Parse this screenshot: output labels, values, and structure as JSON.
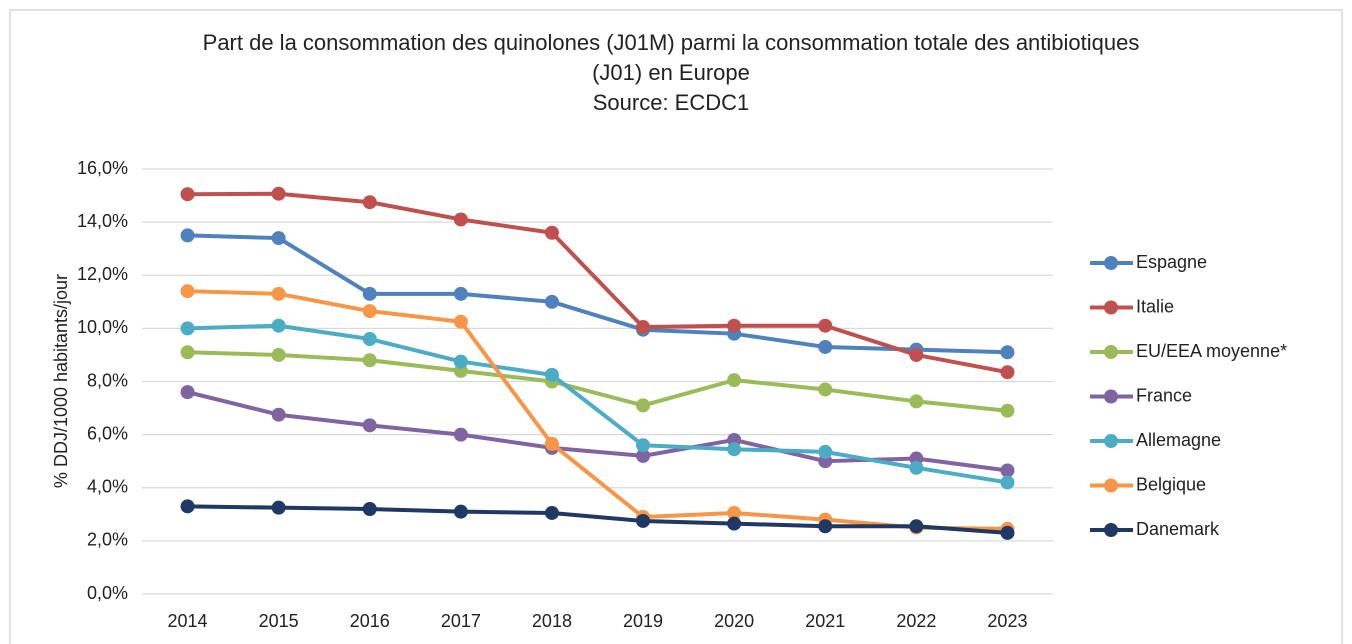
{
  "chart_data": {
    "type": "line",
    "title": "Part de la consommation des quinolones (J01M)  parmi la consommation totale des antibiotiques (J01) en Europe",
    "subtitle": "Source: ECDC1",
    "y_label": "% DDJ/1000 habitants/jour",
    "categories": [
      "2014",
      "2015",
      "2016",
      "2017",
      "2018",
      "2019",
      "2020",
      "2021",
      "2022",
      "2023"
    ],
    "series": [
      {
        "name": "Espagne",
        "color": "#4f81bd",
        "values": [
          13.5,
          13.4,
          11.3,
          11.3,
          11.0,
          9.95,
          9.8,
          9.3,
          9.2,
          9.1
        ]
      },
      {
        "name": "Italie",
        "color": "#c0504d",
        "values": [
          15.05,
          15.07,
          14.75,
          14.1,
          13.6,
          10.05,
          10.1,
          10.1,
          9.0,
          8.35
        ]
      },
      {
        "name": "EU/EEA moyenne*",
        "color": "#9bbb59",
        "values": [
          9.1,
          9.0,
          8.8,
          8.4,
          8.0,
          7.1,
          8.05,
          7.7,
          7.25,
          6.9
        ]
      },
      {
        "name": "France",
        "color": "#8064a2",
        "values": [
          7.6,
          6.75,
          6.35,
          6.0,
          5.5,
          5.2,
          5.8,
          5.0,
          5.1,
          4.65
        ]
      },
      {
        "name": "Allemagne",
        "color": "#4bacc6",
        "values": [
          10.0,
          10.1,
          9.6,
          8.75,
          8.25,
          5.6,
          5.45,
          5.35,
          4.75,
          4.2
        ]
      },
      {
        "name": "Belgique",
        "color": "#f79646",
        "values": [
          11.4,
          11.3,
          10.65,
          10.25,
          5.65,
          2.9,
          3.05,
          2.8,
          2.5,
          2.45
        ]
      },
      {
        "name": "Danemark",
        "color": "#1f3864",
        "values": [
          3.3,
          3.25,
          3.2,
          3.1,
          3.05,
          2.75,
          2.65,
          2.55,
          2.55,
          2.3
        ]
      }
    ],
    "ylim": [
      0,
      16
    ],
    "yticks": [
      {
        "value": 0,
        "label": "0,0%"
      },
      {
        "value": 2,
        "label": "2,0%"
      },
      {
        "value": 4,
        "label": "4,0%"
      },
      {
        "value": 6,
        "label": "6,0%"
      },
      {
        "value": 8,
        "label": "8,0%"
      },
      {
        "value": 10,
        "label": "10,0%"
      },
      {
        "value": 12,
        "label": "12,0%"
      },
      {
        "value": 14,
        "label": "14,0%"
      },
      {
        "value": 16,
        "label": "16,0%"
      }
    ],
    "grid": true,
    "legend": "right"
  }
}
